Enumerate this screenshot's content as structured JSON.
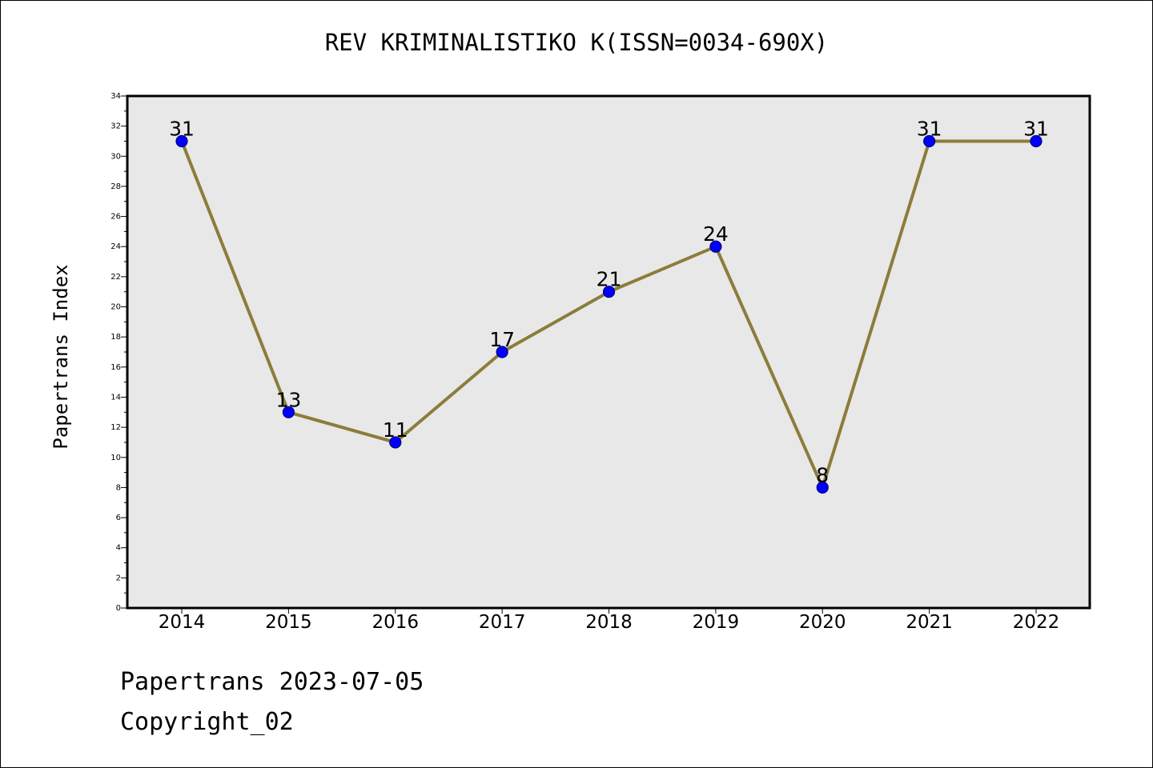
{
  "chart_data": {
    "type": "line",
    "title": "REV KRIMINALISTIKO K(ISSN=0034-690X)",
    "ylabel": "Papertrans Index",
    "xlabel": "",
    "categories": [
      "2014",
      "2015",
      "2016",
      "2017",
      "2018",
      "2019",
      "2020",
      "2021",
      "2022"
    ],
    "series": [
      {
        "values": [
          31,
          13,
          11,
          17,
          21,
          24,
          8,
          31,
          31
        ]
      }
    ],
    "ylim": [
      0,
      34
    ],
    "ytick_step": 2,
    "data_labels": true,
    "grid": false,
    "colors": {
      "plot_background": "#e8e8e8",
      "line": "#8b7d3a",
      "marker": "#0000ff",
      "marker_edge": "#000080"
    }
  },
  "footer": {
    "date_line": "Papertrans 2023-07-05",
    "copyright": "Copyright_02"
  }
}
